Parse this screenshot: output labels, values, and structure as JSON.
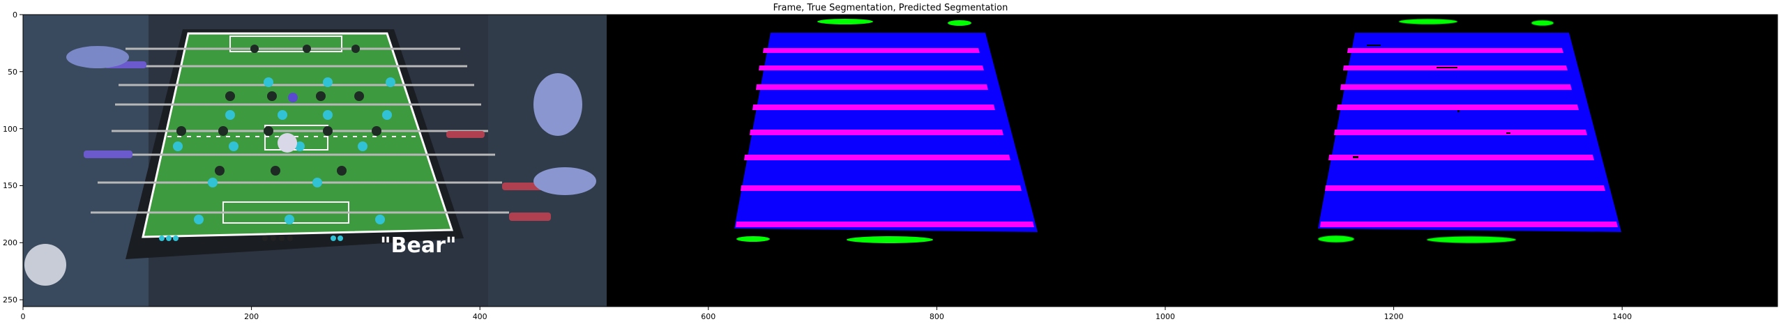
{
  "figure": {
    "title": "Frame, True Segmentation, Predicted Segmentation",
    "x_ticks": [
      "0",
      "200",
      "400",
      "600",
      "800",
      "1000",
      "1200",
      "1400"
    ],
    "y_ticks": [
      "0",
      "50",
      "100",
      "150",
      "200",
      "250"
    ],
    "xlim": [
      0,
      1536
    ],
    "ylim": [
      256,
      0
    ],
    "panels": [
      "frame-photo",
      "true-segmentation",
      "predicted-segmentation"
    ],
    "frame_text": "\"Bear\"",
    "colors": {
      "background": "#000000",
      "table_class": "#0a00ff",
      "rod_class": "#ff00ff",
      "ball_class": "#00ff00",
      "field_green": "#3e9a3e",
      "player_cyan": "#32c2d6",
      "player_dark": "#1e2a24"
    }
  }
}
